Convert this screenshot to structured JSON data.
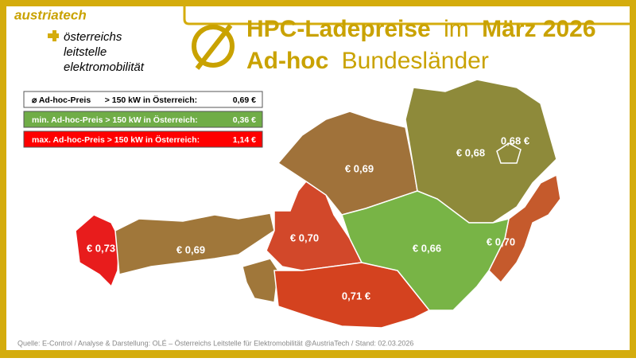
{
  "logo": {
    "brand": "austriatech",
    "lines": [
      "österreichs",
      "leitstelle",
      "elektromobilität"
    ]
  },
  "title": {
    "line1": [
      "HPC-Ladepreise",
      "im",
      "März 2026"
    ],
    "line2": [
      "Ad-hoc",
      "Bundesländer"
    ]
  },
  "legend": [
    {
      "label": "⌀ Ad-hoc-Preis      > 150 kW in Österreich:",
      "value": "0,69 €",
      "color": "#ffffff"
    },
    {
      "label": "min. Ad-hoc-Preis > 150 kW in Österreich:",
      "value": "0,36 €",
      "color": "#70ad47"
    },
    {
      "label": "max. Ad-hoc-Preis > 150 kW in Österreich:",
      "value": "1,14 €",
      "color": "#ff0000"
    }
  ],
  "regions": [
    {
      "label": "€ 0,73",
      "color": "#e81c1c"
    },
    {
      "label": "€ 0,69",
      "color": "#a0773a"
    },
    {
      "label": "€ 0,70",
      "color": "#d2482a"
    },
    {
      "label": "€ 0,69",
      "color": "#a0723a"
    },
    {
      "label": "€ 0,68",
      "color": "#8e8a3a"
    },
    {
      "label": "0,68 €",
      "color": "#8e8a3a"
    },
    {
      "label": "€ 0,70",
      "color": "#c55a2c"
    },
    {
      "label": "€ 0,66",
      "color": "#78b446"
    },
    {
      "label": "0,71 €",
      "color": "#d4421f"
    }
  ],
  "footer": "Quelle: E-Control / Analyse & Darstellung: OLÉ – Österreichs Leitstelle für Elektromobilität @AustriaTech / Stand: 02.03.2026"
}
